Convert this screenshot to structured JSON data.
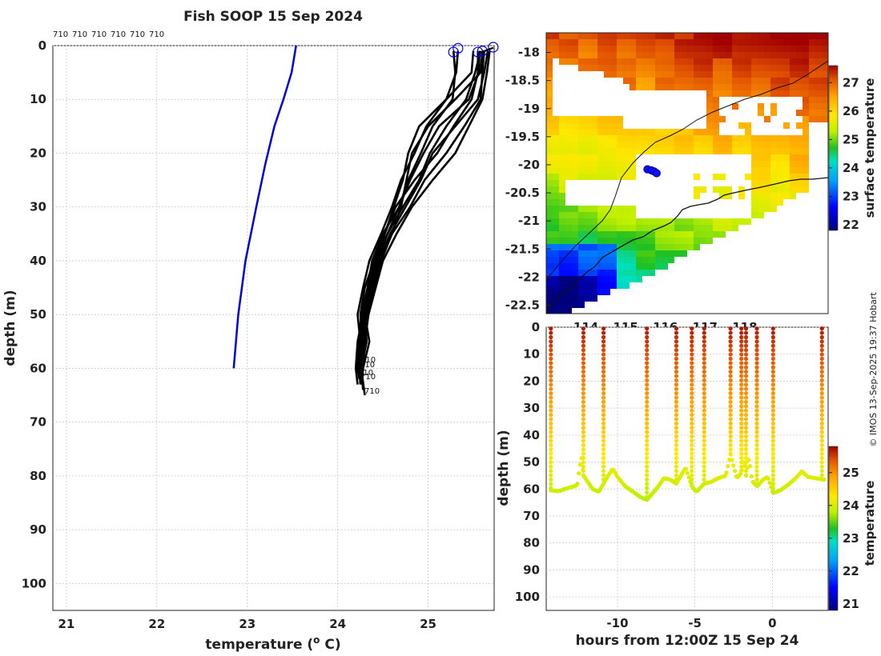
{
  "chart_data": [
    {
      "type": "line",
      "title": "Fish SOOP 15 Sep 2024",
      "xlabel": "temperature (",
      "xlabel_sup": "o",
      "xlabel_tail": " C)",
      "ylabel": "depth (m)",
      "xlim": [
        20.85,
        25.73
      ],
      "ylim": [
        105,
        0
      ],
      "xticks": [
        21,
        22,
        23,
        24,
        25
      ],
      "yticks": [
        0,
        10,
        20,
        30,
        40,
        50,
        60,
        70,
        80,
        90,
        100
      ],
      "top_labels": [
        "710",
        "710",
        "710",
        "710",
        "710",
        "710"
      ],
      "profile_labels": [
        "710",
        "710",
        "710",
        "710",
        "710"
      ],
      "climatology": {
        "color": "#0000dd",
        "temp": [
          23.54,
          23.49,
          23.4,
          23.3,
          23.2,
          23.1,
          22.98,
          22.9,
          22.85
        ],
        "depth": [
          0,
          5,
          10,
          15,
          22,
          30,
          40,
          50,
          60
        ]
      },
      "profiles": [
        {
          "temp": [
            25.28,
            25.3,
            25.27,
            25.05,
            24.92,
            24.78,
            24.68,
            24.5,
            24.38,
            24.33,
            24.3,
            24.35,
            24.28,
            24.25
          ],
          "depth": [
            1,
            5,
            10,
            15,
            20,
            25,
            30,
            35,
            40,
            45,
            50,
            55,
            60,
            63
          ]
        },
        {
          "temp": [
            25.33,
            25.31,
            25.2,
            24.98,
            24.85,
            24.7,
            24.6,
            24.48,
            24.35,
            24.28,
            24.22,
            24.25,
            24.22,
            24.24
          ],
          "depth": [
            1,
            5,
            10,
            15,
            20,
            25,
            30,
            35,
            40,
            45,
            50,
            55,
            60,
            62
          ]
        },
        {
          "temp": [
            25.58,
            25.52,
            25.42,
            25.2,
            25.02,
            24.9,
            24.72,
            24.55,
            24.4,
            24.3,
            24.25,
            24.28,
            24.26,
            24.28
          ],
          "depth": [
            1,
            5,
            10,
            15,
            20,
            25,
            30,
            35,
            40,
            45,
            50,
            55,
            60,
            64
          ]
        },
        {
          "temp": [
            25.55,
            25.55,
            25.48,
            25.28,
            25.1,
            24.85,
            24.64,
            24.52,
            24.42,
            24.35,
            24.28,
            24.22,
            24.2,
            24.22
          ],
          "depth": [
            1,
            5,
            10,
            15,
            20,
            25,
            30,
            35,
            40,
            45,
            50,
            55,
            60,
            63
          ]
        },
        {
          "temp": [
            25.62,
            25.6,
            25.58,
            25.4,
            25.2,
            24.96,
            24.8,
            24.6,
            24.48,
            24.4,
            24.32,
            24.3,
            24.28,
            24.27
          ],
          "depth": [
            1,
            5,
            10,
            15,
            20,
            25,
            30,
            35,
            40,
            45,
            50,
            55,
            60,
            62
          ]
        },
        {
          "temp": [
            25.66,
            25.62,
            25.55,
            25.3,
            25.05,
            24.92,
            24.75,
            24.58,
            24.45,
            24.36,
            24.3,
            24.32,
            24.26,
            24.3
          ],
          "depth": [
            1,
            5,
            10,
            15,
            20,
            25,
            30,
            35,
            40,
            45,
            50,
            55,
            60,
            65
          ]
        },
        {
          "temp": [
            25.5,
            25.48,
            25.2,
            24.9,
            24.78,
            24.72,
            24.62,
            24.52,
            24.4,
            24.33,
            24.26,
            24.24,
            24.22,
            24.24
          ],
          "depth": [
            1,
            5,
            10,
            15,
            20,
            25,
            30,
            35,
            40,
            45,
            50,
            55,
            60,
            62
          ]
        },
        {
          "temp": [
            25.57,
            25.56,
            25.45,
            25.12,
            24.95,
            24.8,
            24.68,
            24.55,
            24.44,
            24.35,
            24.28,
            24.26,
            24.24,
            24.25
          ],
          "depth": [
            1,
            5,
            10,
            15,
            20,
            25,
            30,
            35,
            40,
            45,
            50,
            55,
            60,
            63
          ]
        },
        {
          "temp": [
            25.6,
            25.58,
            25.3,
            25.0,
            24.82,
            24.76,
            24.7,
            24.6,
            24.47,
            24.38,
            24.3,
            24.28,
            24.25,
            24.26
          ],
          "depth": [
            1,
            5,
            10,
            15,
            20,
            25,
            30,
            35,
            40,
            45,
            50,
            55,
            60,
            61
          ]
        },
        {
          "temp": [
            25.68,
            25.65,
            25.6,
            25.45,
            25.3,
            25.05,
            24.82,
            24.65,
            24.5,
            24.42,
            24.34,
            24.3,
            24.26,
            24.27
          ],
          "depth": [
            1,
            5,
            10,
            15,
            20,
            25,
            30,
            35,
            40,
            45,
            50,
            55,
            60,
            62
          ]
        }
      ],
      "surface_markers": [
        {
          "temp": 25.28,
          "depth": 1.2
        },
        {
          "temp": 25.33,
          "depth": 0.5
        },
        {
          "temp": 25.55,
          "depth": 1.2
        },
        {
          "temp": 25.6,
          "depth": 1.0
        },
        {
          "temp": 25.72,
          "depth": 0.3
        }
      ]
    },
    {
      "type": "heatmap",
      "title": "",
      "colorbar_label": "surface temperature",
      "colorbar_ticks": [
        22,
        23,
        24,
        25,
        26,
        27
      ],
      "colorbar_range": [
        21.8,
        27.6
      ],
      "xticks_partial": [
        "114",
        "115",
        "116",
        "117",
        "118"
      ],
      "yticks": [
        -18,
        -18.5,
        -19,
        -19.5,
        -20,
        -20.5,
        -21,
        -21.5,
        -22,
        -22.5
      ],
      "ylim": [
        -22.65,
        -17.65
      ],
      "xlim": [
        113.0,
        120.1
      ],
      "track_points": [
        {
          "lon": 115.55,
          "lat": -20.08
        },
        {
          "lon": 115.65,
          "lat": -20.1
        },
        {
          "lon": 115.72,
          "lat": -20.12
        },
        {
          "lon": 115.78,
          "lat": -20.15
        }
      ]
    },
    {
      "type": "scatter",
      "title": "",
      "xlabel": "hours from 12:00Z 15 Sep 24",
      "ylabel": "depth (m)",
      "xlim": [
        -14.6,
        3.6
      ],
      "ylim": [
        105,
        0
      ],
      "xticks": [
        -10,
        -5,
        0
      ],
      "yticks": [
        0,
        10,
        20,
        30,
        40,
        50,
        60,
        70,
        80,
        90,
        100
      ],
      "colorbar_label": "temperature",
      "colorbar_ticks": [
        21,
        22,
        23,
        24,
        25
      ],
      "colorbar_range": [
        20.8,
        25.8
      ],
      "casts": [
        -14.3,
        -12.2,
        -10.9,
        -8.1,
        -6.2,
        -5.2,
        -4.4,
        -2.7,
        -2.0,
        -1.7,
        -1.0,
        0.05,
        3.2
      ],
      "bottom_trace": [
        [
          -14.3,
          60.5
        ],
        [
          -13.8,
          60.8
        ],
        [
          -13.3,
          59.8
        ],
        [
          -12.8,
          59.0
        ],
        [
          -12.6,
          58.5
        ],
        [
          -12.45,
          52.0
        ],
        [
          -12.3,
          48.0
        ],
        [
          -12.2,
          55.0
        ],
        [
          -11.6,
          60.0
        ],
        [
          -11.2,
          61.0
        ],
        [
          -10.9,
          58.0
        ],
        [
          -10.6,
          55.0
        ],
        [
          -10.3,
          52.5
        ],
        [
          -10.0,
          55.5
        ],
        [
          -9.5,
          59.0
        ],
        [
          -9.0,
          61.0
        ],
        [
          -8.5,
          63.0
        ],
        [
          -8.1,
          64.0
        ],
        [
          -7.5,
          60.0
        ],
        [
          -7.0,
          56.0
        ],
        [
          -6.6,
          56.5
        ],
        [
          -6.2,
          58.0
        ],
        [
          -5.9,
          55.0
        ],
        [
          -5.6,
          52.0
        ],
        [
          -5.2,
          59.0
        ],
        [
          -4.9,
          61.0
        ],
        [
          -4.4,
          58.0
        ],
        [
          -4.0,
          57.5
        ],
        [
          -3.5,
          56.0
        ],
        [
          -3.0,
          55.0
        ],
        [
          -2.7,
          47.0
        ],
        [
          -2.3,
          56.0
        ],
        [
          -2.0,
          54.0
        ],
        [
          -1.85,
          49.0
        ],
        [
          -1.7,
          55.0
        ],
        [
          -1.5,
          48.5
        ],
        [
          -1.3,
          57.0
        ],
        [
          -1.0,
          59.0
        ],
        [
          -0.6,
          56.5
        ],
        [
          -0.3,
          55.5
        ],
        [
          0.05,
          61.5
        ],
        [
          0.5,
          60.5
        ],
        [
          1.0,
          58.5
        ],
        [
          1.5,
          56.0
        ],
        [
          1.9,
          53.5
        ],
        [
          2.3,
          55.5
        ],
        [
          2.8,
          56.0
        ],
        [
          3.3,
          56.5
        ]
      ]
    }
  ],
  "credit": "© IMOS 13-Sep-2025 19:37 Hobart"
}
